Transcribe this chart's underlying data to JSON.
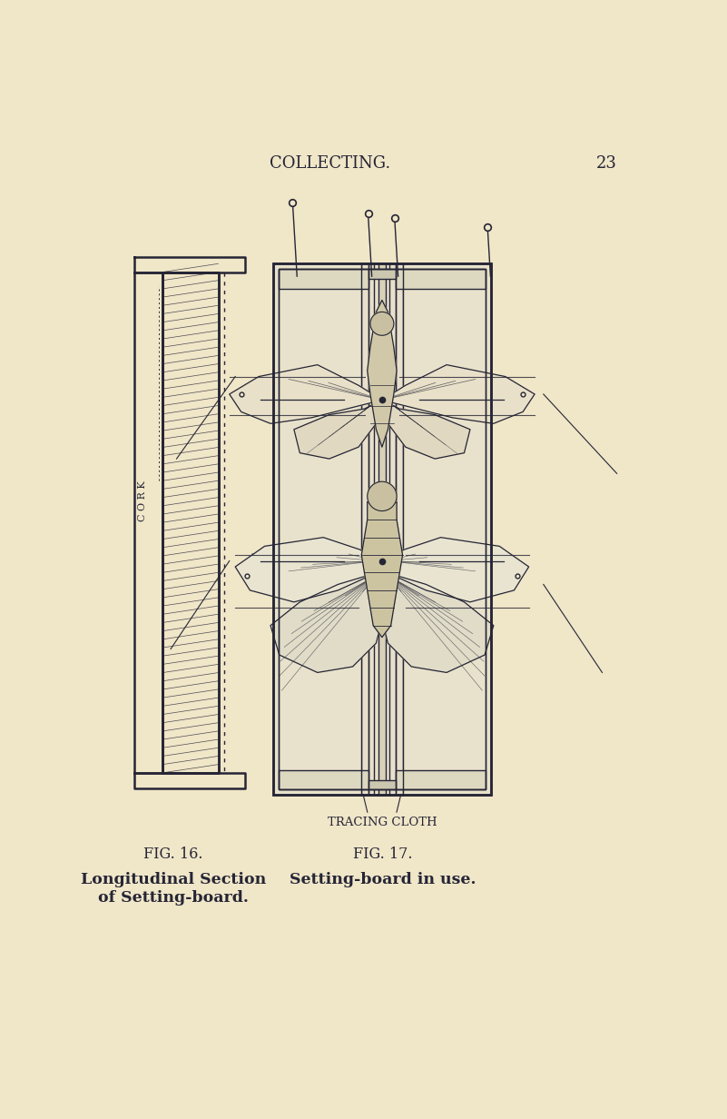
{
  "bg_color": "#f0e6c8",
  "ink_color": "#252535",
  "title_text": "COLLECTING.",
  "page_num": "23",
  "fig16_label": "FIG. 16.",
  "fig17_label": "FIG. 17.",
  "fig16_caption1": "Longitudinal Section",
  "fig16_caption2": "of Setting-board.",
  "fig17_caption": "Setting-board in use.",
  "tracing_cloth_label": "TRACING CLOTH"
}
